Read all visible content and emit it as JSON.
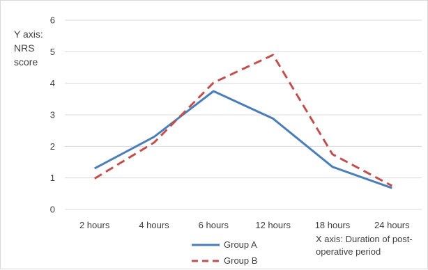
{
  "chart_data": {
    "type": "line",
    "categories": [
      "2 hours",
      "4 hours",
      "6 hours",
      "12 hours",
      "18 hours",
      "24 hours"
    ],
    "series": [
      {
        "name": "Group A",
        "values": [
          1.3,
          2.3,
          3.75,
          2.88,
          1.35,
          0.68
        ],
        "color": "#4a7ebb",
        "style": "solid"
      },
      {
        "name": "Group B",
        "values": [
          0.98,
          2.12,
          4.02,
          4.9,
          1.75,
          0.75
        ],
        "color": "#c0504d",
        "style": "dashed"
      }
    ],
    "ylim": [
      0,
      6
    ],
    "yticks": [
      0,
      1,
      2,
      3,
      4,
      5,
      6
    ],
    "ylabel_lines": [
      "Y axis:",
      "NRS",
      "score"
    ],
    "xlabel_lines": [
      "X axis: Duration of post-",
      "operative period"
    ],
    "grid": true,
    "legend_placement": "bottom-center"
  }
}
